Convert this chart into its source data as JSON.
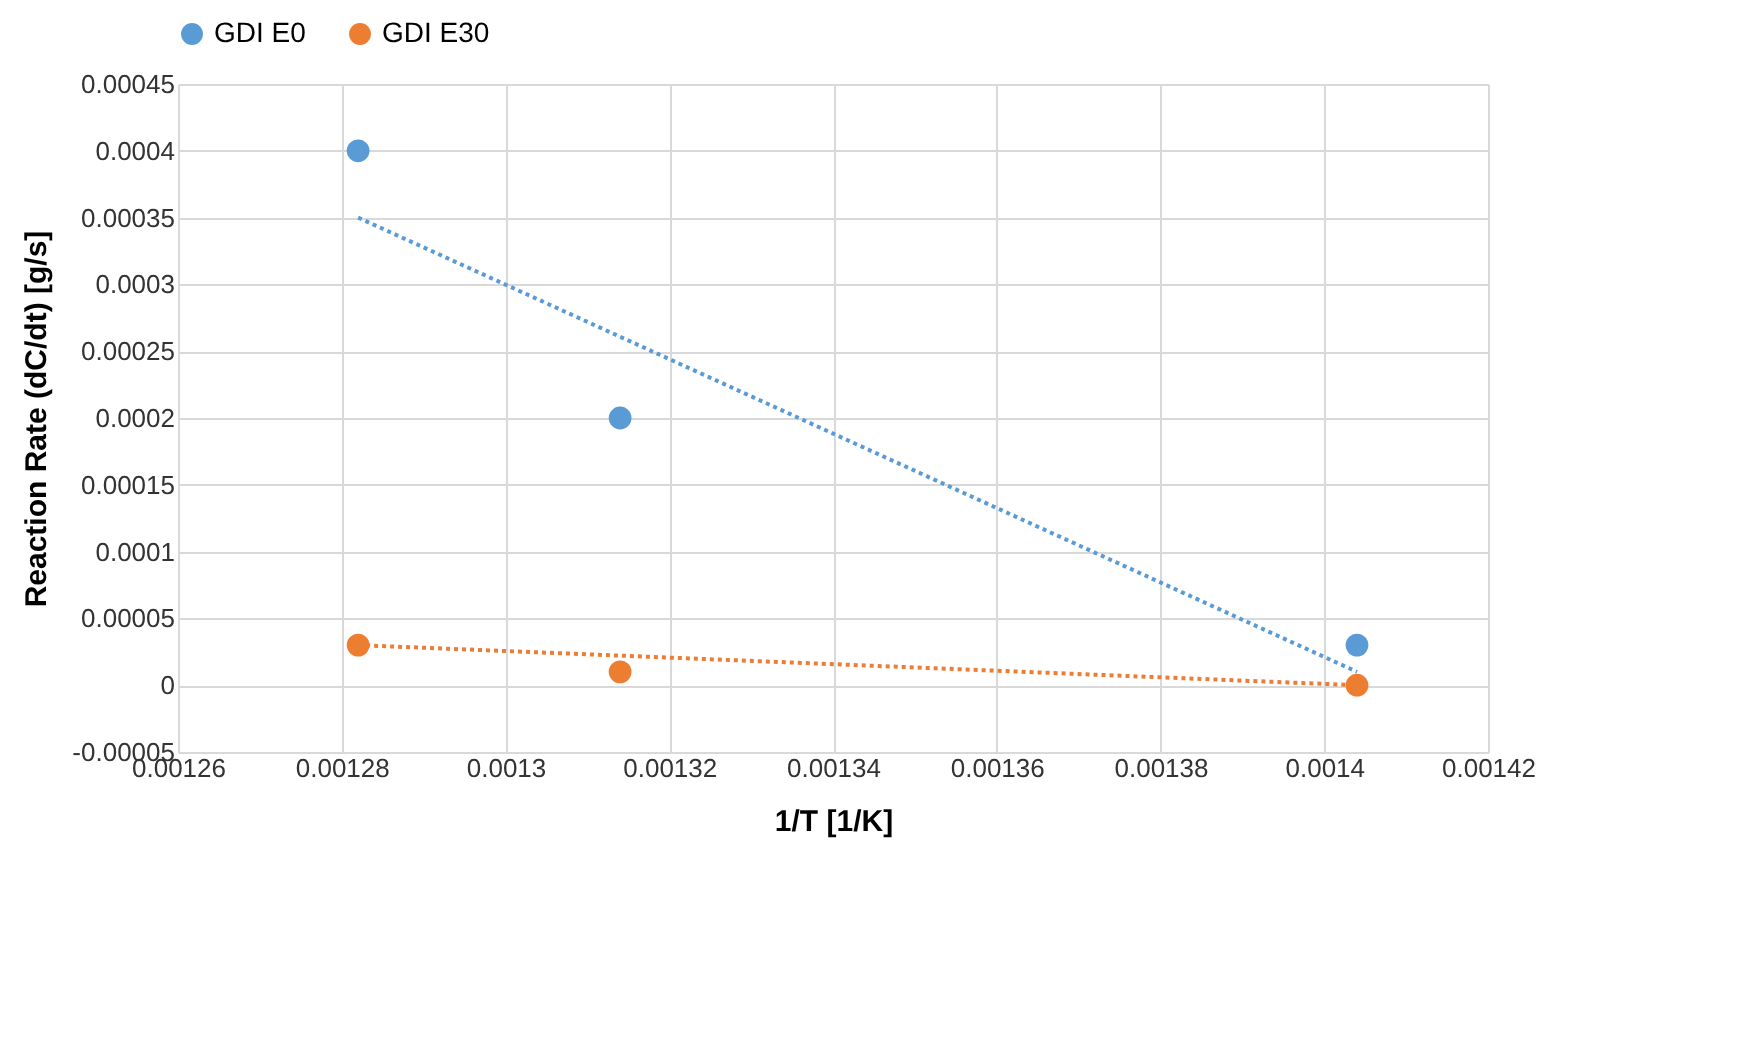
{
  "chart_data": {
    "type": "scatter",
    "xlabel": "1/T  [1/K]",
    "ylabel": "Reaction Rate (dC/dt) [g/s]",
    "xlim": [
      0.00126,
      0.00142
    ],
    "xticks": [
      0.00126,
      0.00128,
      0.0013,
      0.00132,
      0.00134,
      0.00136,
      0.00138,
      0.0014,
      0.00142
    ],
    "ylim": [
      -5e-05,
      0.00045
    ],
    "yticks": [
      {
        "value": -5e-05,
        "label": "-0.00005"
      },
      0,
      {
        "value": 5e-05,
        "label": "0.00005"
      },
      0.0001,
      0.00015,
      0.0002,
      0.00025,
      0.0003,
      0.00035,
      0.0004,
      0.00045
    ],
    "grid": true,
    "legend": "top",
    "marker": "circle",
    "series": [
      {
        "name": "GDI E0",
        "color": "#5b9bd5",
        "x": [
          0.001282,
          0.001314,
          0.001404
        ],
        "values": [
          0.0004,
          0.0002,
          3e-05
        ]
      },
      {
        "name": "GDI E30",
        "color": "#ed7d31",
        "x": [
          0.001282,
          0.001314,
          0.001404
        ],
        "values": [
          3e-05,
          1e-05,
          0
        ]
      },
      {
        "type": "line",
        "color": "#5b9bd5",
        "line_style": "dotted",
        "marker": "none",
        "x": [
          0.001282,
          0.001404
        ],
        "values": [
          0.00035,
          1e-05
        ]
      },
      {
        "type": "line",
        "color": "#ed7d31",
        "line_style": "dotted",
        "marker": "none",
        "x": [
          0.001282,
          0.001404
        ],
        "values": [
          3e-05,
          0
        ]
      }
    ]
  }
}
